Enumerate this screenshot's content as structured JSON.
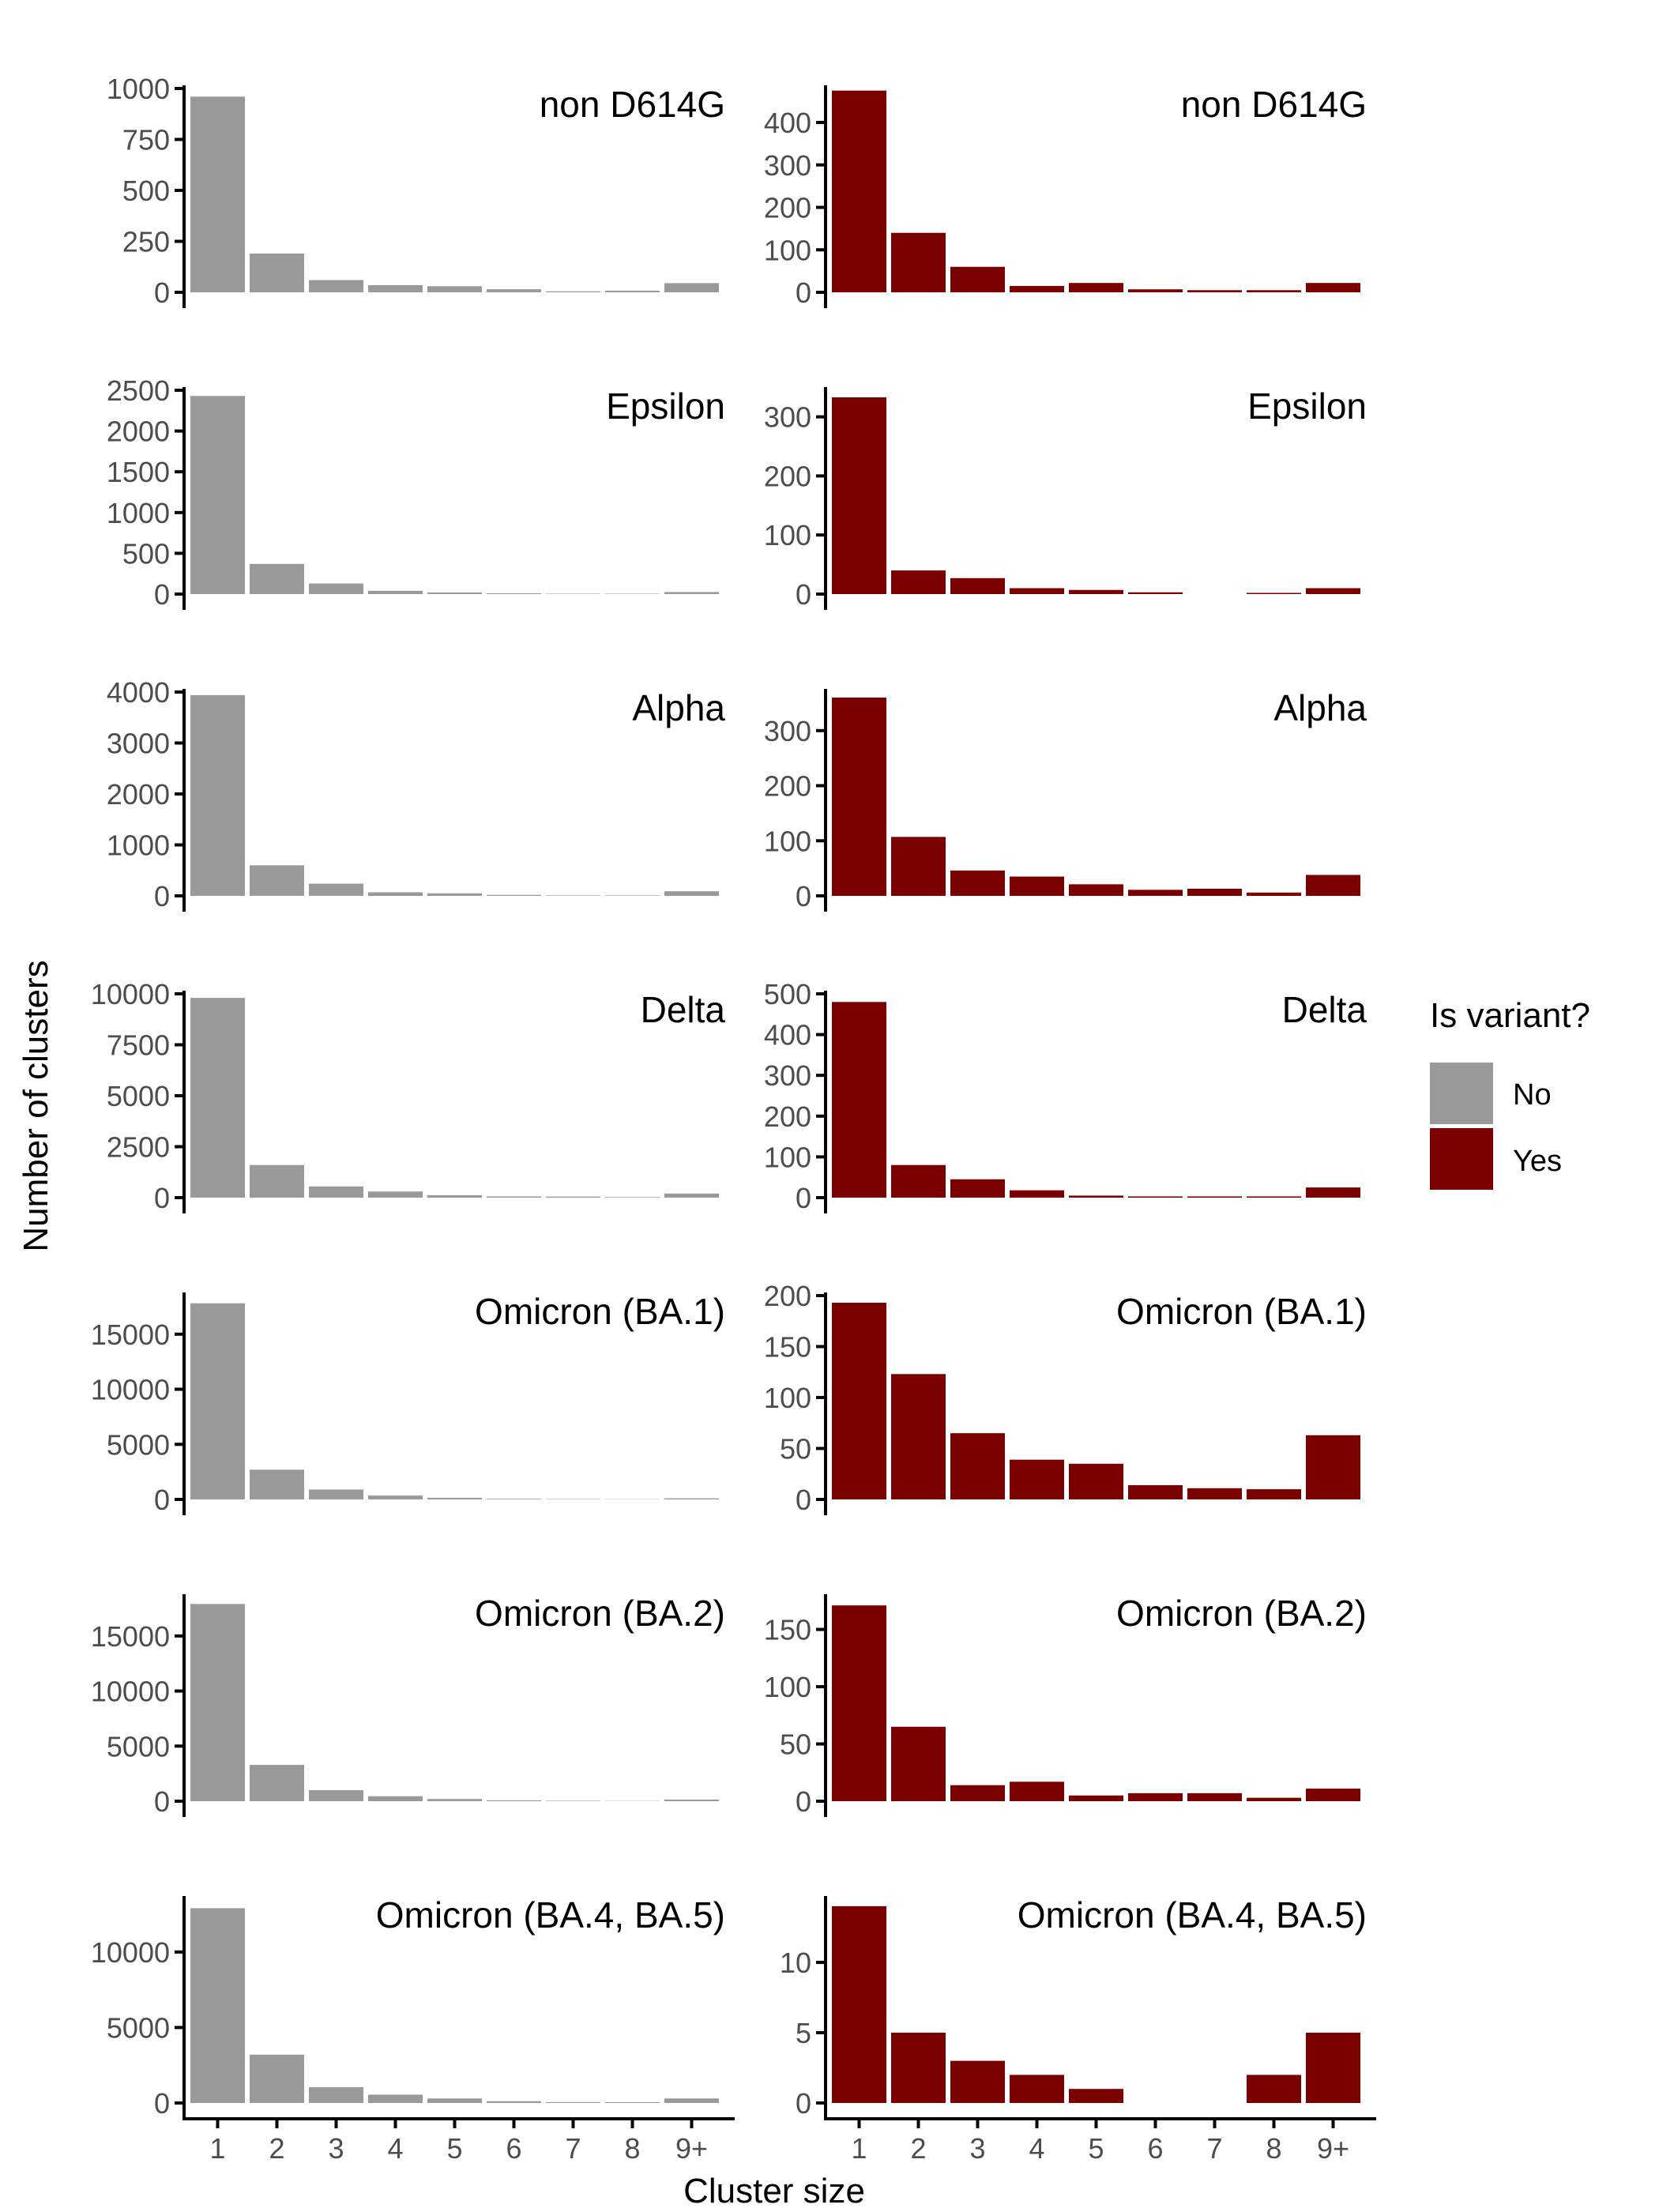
{
  "figure": {
    "ylabel": "Number of clusters",
    "xlabel": "Cluster size",
    "legend": {
      "title": "Is variant?",
      "position": "right",
      "entries": [
        {
          "label": "No",
          "color": "#999999"
        },
        {
          "label": "Yes",
          "color": "#7a0000"
        }
      ]
    }
  },
  "chart_data": [
    {
      "type": "bar",
      "panel_label": "non D614G",
      "group": "No",
      "color": "#999999",
      "categories": [
        "1",
        "2",
        "3",
        "4",
        "5",
        "6",
        "7",
        "8",
        "9+"
      ],
      "values": [
        960,
        190,
        60,
        35,
        30,
        15,
        5,
        8,
        45
      ],
      "ylim": [
        0,
        1000
      ],
      "yticks": [
        0,
        250,
        500,
        750,
        1000
      ]
    },
    {
      "type": "bar",
      "panel_label": "non D614G",
      "group": "Yes",
      "color": "#7a0000",
      "categories": [
        "1",
        "2",
        "3",
        "4",
        "5",
        "6",
        "7",
        "8",
        "9+"
      ],
      "values": [
        475,
        140,
        60,
        15,
        22,
        7,
        5,
        5,
        22
      ],
      "ylim": [
        0,
        480
      ],
      "yticks": [
        0,
        100,
        200,
        300,
        400
      ]
    },
    {
      "type": "bar",
      "panel_label": "Epsilon",
      "group": "No",
      "color": "#999999",
      "categories": [
        "1",
        "2",
        "3",
        "4",
        "5",
        "6",
        "7",
        "8",
        "9+"
      ],
      "values": [
        2430,
        370,
        130,
        40,
        20,
        10,
        5,
        5,
        25
      ],
      "ylim": [
        0,
        2500
      ],
      "yticks": [
        0,
        500,
        1000,
        1500,
        2000,
        2500
      ]
    },
    {
      "type": "bar",
      "panel_label": "Epsilon",
      "group": "Yes",
      "color": "#7a0000",
      "categories": [
        "1",
        "2",
        "3",
        "4",
        "5",
        "6",
        "7",
        "8",
        "9+"
      ],
      "values": [
        333,
        40,
        27,
        10,
        7,
        3,
        0,
        2,
        10
      ],
      "ylim": [
        0,
        345
      ],
      "yticks": [
        0,
        100,
        200,
        300
      ]
    },
    {
      "type": "bar",
      "panel_label": "Alpha",
      "group": "No",
      "color": "#999999",
      "categories": [
        "1",
        "2",
        "3",
        "4",
        "5",
        "6",
        "7",
        "8",
        "9+"
      ],
      "values": [
        3940,
        600,
        240,
        70,
        50,
        20,
        10,
        10,
        90
      ],
      "ylim": [
        0,
        4000
      ],
      "yticks": [
        0,
        1000,
        2000,
        3000,
        4000
      ]
    },
    {
      "type": "bar",
      "panel_label": "Alpha",
      "group": "Yes",
      "color": "#7a0000",
      "categories": [
        "1",
        "2",
        "3",
        "4",
        "5",
        "6",
        "7",
        "8",
        "9+"
      ],
      "values": [
        360,
        107,
        46,
        35,
        21,
        11,
        13,
        6,
        38
      ],
      "ylim": [
        0,
        370
      ],
      "yticks": [
        0,
        100,
        200,
        300
      ]
    },
    {
      "type": "bar",
      "panel_label": "Delta",
      "group": "No",
      "color": "#999999",
      "categories": [
        "1",
        "2",
        "3",
        "4",
        "5",
        "6",
        "7",
        "8",
        "9+"
      ],
      "values": [
        9800,
        1600,
        550,
        300,
        120,
        60,
        50,
        30,
        200
      ],
      "ylim": [
        0,
        10000
      ],
      "yticks": [
        0,
        2500,
        5000,
        7500,
        10000
      ]
    },
    {
      "type": "bar",
      "panel_label": "Delta",
      "group": "Yes",
      "color": "#7a0000",
      "categories": [
        "1",
        "2",
        "3",
        "4",
        "5",
        "6",
        "7",
        "8",
        "9+"
      ],
      "values": [
        480,
        80,
        45,
        18,
        5,
        3,
        3,
        3,
        25
      ],
      "ylim": [
        0,
        500
      ],
      "yticks": [
        0,
        100,
        200,
        300,
        400,
        500
      ]
    },
    {
      "type": "bar",
      "panel_label": "Omicron (BA.1)",
      "group": "No",
      "color": "#999999",
      "categories": [
        "1",
        "2",
        "3",
        "4",
        "5",
        "6",
        "7",
        "8",
        "9+"
      ],
      "values": [
        17800,
        2700,
        900,
        350,
        150,
        60,
        30,
        20,
        100
      ],
      "ylim": [
        0,
        18500
      ],
      "yticks": [
        0,
        5000,
        10000,
        15000
      ]
    },
    {
      "type": "bar",
      "panel_label": "Omicron (BA.1)",
      "group": "Yes",
      "color": "#7a0000",
      "categories": [
        "1",
        "2",
        "3",
        "4",
        "5",
        "6",
        "7",
        "8",
        "9+"
      ],
      "values": [
        193,
        123,
        65,
        39,
        35,
        14,
        11,
        10,
        63
      ],
      "ylim": [
        0,
        200
      ],
      "yticks": [
        0,
        50,
        100,
        150,
        200
      ]
    },
    {
      "type": "bar",
      "panel_label": "Omicron (BA.2)",
      "group": "No",
      "color": "#999999",
      "categories": [
        "1",
        "2",
        "3",
        "4",
        "5",
        "6",
        "7",
        "8",
        "9+"
      ],
      "values": [
        17900,
        3300,
        1000,
        450,
        200,
        80,
        40,
        20,
        150
      ],
      "ylim": [
        0,
        18500
      ],
      "yticks": [
        0,
        5000,
        10000,
        15000
      ]
    },
    {
      "type": "bar",
      "panel_label": "Omicron (BA.2)",
      "group": "Yes",
      "color": "#7a0000",
      "categories": [
        "1",
        "2",
        "3",
        "4",
        "5",
        "6",
        "7",
        "8",
        "9+"
      ],
      "values": [
        171,
        65,
        14,
        17,
        5,
        7,
        7,
        3,
        11
      ],
      "ylim": [
        0,
        178
      ],
      "yticks": [
        0,
        50,
        100,
        150
      ]
    },
    {
      "type": "bar",
      "panel_label": "Omicron (BA.4, BA.5)",
      "group": "No",
      "color": "#999999",
      "categories": [
        "1",
        "2",
        "3",
        "4",
        "5",
        "6",
        "7",
        "8",
        "9+"
      ],
      "values": [
        12900,
        3200,
        1050,
        550,
        300,
        120,
        60,
        50,
        300
      ],
      "ylim": [
        0,
        13500
      ],
      "yticks": [
        0,
        5000,
        10000
      ]
    },
    {
      "type": "bar",
      "panel_label": "Omicron (BA.4, BA.5)",
      "group": "Yes",
      "color": "#7a0000",
      "categories": [
        "1",
        "2",
        "3",
        "4",
        "5",
        "6",
        "7",
        "8",
        "9+"
      ],
      "values": [
        14,
        5,
        3,
        2,
        1,
        0,
        0,
        2,
        5
      ],
      "ylim": [
        0,
        14.5
      ],
      "yticks": [
        0,
        5,
        10
      ]
    }
  ]
}
